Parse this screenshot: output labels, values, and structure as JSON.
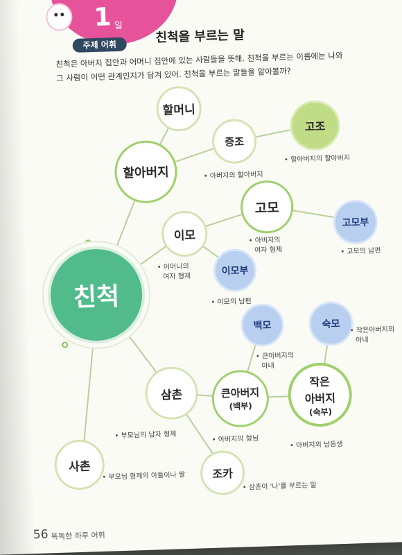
{
  "header": {
    "day_number": "1",
    "day_unit": "일",
    "topic_pill": "주제 어휘",
    "title": "친척을 부르는 말"
  },
  "intro": {
    "line1": "친척은 아버지 집안과 어머니 집안에 있는 사람들을 뜻해. 친척을 부르는 이름에는 나와",
    "line2": "그 사람이 어떤 관계인지가 담겨 있어. 친척을 부르는 말들을 알아볼까?"
  },
  "nodes": {
    "center": "친척",
    "halmeoni": "할머니",
    "harabeoji": "할아버지",
    "jeungjo": "증조",
    "gojo": "고조",
    "imo": "이모",
    "gomo": "고모",
    "gomobu": "고모부",
    "imobu": "이모부",
    "baekmo": "백모",
    "sukmo": "숙모",
    "samchon": "삼촌",
    "keunabeoji": "큰아버지",
    "keunabeoji_sub": "(백부)",
    "jageun_line1": "작은",
    "jageun_line2": "아버지",
    "jageun_sub": "(숙부)",
    "sachon": "사촌",
    "joka": "조카"
  },
  "notes": {
    "jeungjo": "• 아버지의 할아버지",
    "gojo": "• 할아버지의 할아버지",
    "gomo_1": "• 아버지의",
    "gomo_2": "여자 형제",
    "gomobu": "• 고모의 남편",
    "imo_1": "• 어머니의",
    "imo_2": "여자 형제",
    "imobu": "• 이모의 남편",
    "sukmo_1": "• 작은아버지의",
    "sukmo_2": "아내",
    "baekmo_1": "• 큰아버지의",
    "baekmo_2": "아내",
    "samchon": "• 부모님의 남자 형제",
    "keunabeoji": "• 아버지의 형님",
    "jageun": "• 아버지의 남동생",
    "sachon": "• 부모님 형제의 아들이나 딸",
    "joka": "• 삼촌이 '나'를 부르는 말"
  },
  "footer": {
    "page_number": "56",
    "book_title": "똑똑한 하루 어휘"
  },
  "colors": {
    "pink": "#e7539a",
    "navy": "#2f4960",
    "center_green": "#52bb8c",
    "ring_green": "#9fd06c",
    "olive": "#c1dc86",
    "blue": "#b8cff0"
  }
}
